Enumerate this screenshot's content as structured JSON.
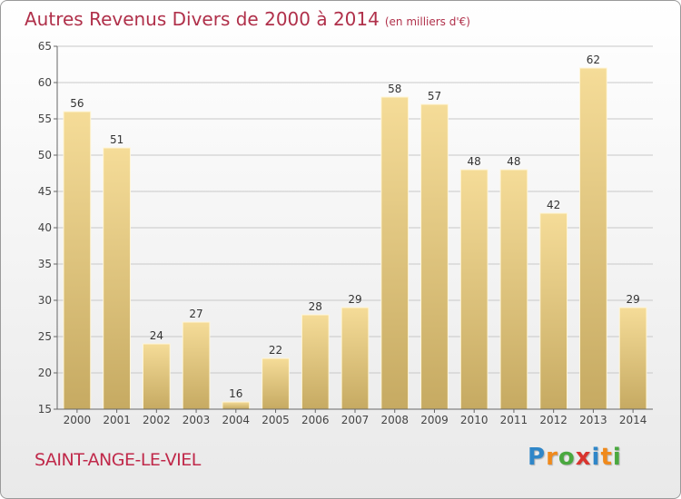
{
  "title": "Autres Revenus Divers de 2000 à 2014",
  "subtitle": "(en milliers d'€)",
  "commune": "SAINT-ANGE-LE-VIEL",
  "logo": {
    "letters": [
      "P",
      "r",
      "o",
      "x",
      "i",
      "t",
      "i"
    ],
    "colors": [
      "#2f86c8",
      "#f08a1c",
      "#4aa83f",
      "#d9352f",
      "#2f86c8",
      "#f08a1c",
      "#4aa83f"
    ]
  },
  "colors": {
    "bar_top": "#f5dc98",
    "bar_bottom": "#c6aa62",
    "grid": "#c8c8c8",
    "axis": "#666666"
  },
  "chart_data": {
    "type": "bar",
    "title": "Autres Revenus Divers de 2000 à 2014",
    "ylabel": "en milliers d'€",
    "xlabel": "",
    "categories": [
      "2000",
      "2001",
      "2002",
      "2003",
      "2004",
      "2005",
      "2006",
      "2007",
      "2008",
      "2009",
      "2010",
      "2011",
      "2012",
      "2013",
      "2014"
    ],
    "values": [
      56,
      51,
      24,
      27,
      16,
      22,
      28,
      29,
      58,
      57,
      48,
      48,
      42,
      62,
      29
    ],
    "ylim": [
      15,
      65
    ],
    "yticks": [
      15,
      20,
      25,
      30,
      35,
      40,
      45,
      50,
      55,
      60,
      65
    ],
    "grid": true
  }
}
